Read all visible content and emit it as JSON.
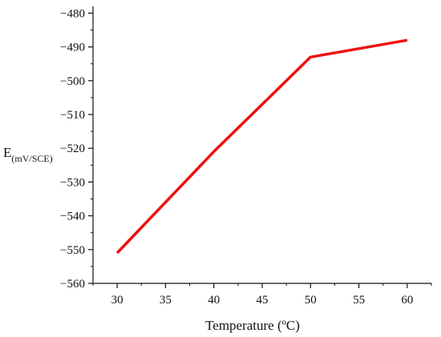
{
  "chart_data": {
    "type": "line",
    "title": "",
    "xlabel": "Temperature (ºC)",
    "ylabel_main": "E",
    "ylabel_sub": "(mV/SCE)",
    "xlim": [
      27.5,
      62.5
    ],
    "ylim": [
      -560,
      -478
    ],
    "x_ticks": [
      30,
      35,
      40,
      45,
      50,
      55,
      60
    ],
    "y_ticks": [
      -480,
      -490,
      -500,
      -510,
      -520,
      -530,
      -540,
      -550,
      -560
    ],
    "series": [
      {
        "color": "#ee1111",
        "x": [
          30,
          40,
          50,
          60
        ],
        "y": [
          -551,
          -521,
          -493,
          -488
        ]
      }
    ],
    "grid": false,
    "legend": "none"
  }
}
